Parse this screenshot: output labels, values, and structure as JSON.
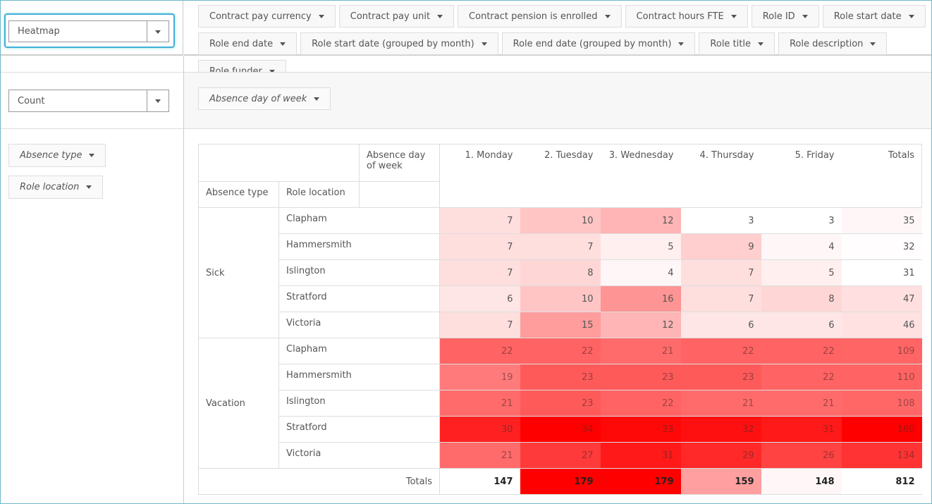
{
  "renderer": "Heatmap",
  "aggregator": "Count",
  "unused_attributes": [
    "Contract pay currency",
    "Contract pay unit",
    "Contract pension is enrolled",
    "Contract hours FTE",
    "Role ID",
    "Role start date",
    "Role end date",
    "Role start date (grouped by month)",
    "Role end date (grouped by month)",
    "Role title",
    "Role description",
    "Role funder"
  ],
  "column_attributes": [
    "Absence day of week"
  ],
  "row_attributes": [
    "Absence type",
    "Role location"
  ],
  "table": {
    "corner_label": "Absence day of week",
    "row_headers": [
      "Absence type",
      "Role location"
    ],
    "columns": [
      "1. Monday",
      "2. Tuesday",
      "3. Wednesday",
      "4. Thursday",
      "5. Friday"
    ],
    "totals_column_label": "Totals",
    "groups": [
      {
        "name": "Sick",
        "rows": [
          {
            "label": "Clapham",
            "values": [
              7,
              10,
              12,
              3,
              3
            ],
            "total": 35
          },
          {
            "label": "Hammersmith",
            "values": [
              7,
              7,
              5,
              9,
              4
            ],
            "total": 32
          },
          {
            "label": "Islington",
            "values": [
              7,
              8,
              4,
              7,
              5
            ],
            "total": 31
          },
          {
            "label": "Stratford",
            "values": [
              6,
              10,
              16,
              7,
              8
            ],
            "total": 47
          },
          {
            "label": "Victoria",
            "values": [
              7,
              15,
              12,
              6,
              6
            ],
            "total": 46
          }
        ]
      },
      {
        "name": "Vacation",
        "rows": [
          {
            "label": "Clapham",
            "values": [
              22,
              22,
              21,
              22,
              22
            ],
            "total": 109
          },
          {
            "label": "Hammersmith",
            "values": [
              19,
              23,
              23,
              23,
              22
            ],
            "total": 110
          },
          {
            "label": "Islington",
            "values": [
              21,
              23,
              22,
              21,
              21
            ],
            "total": 108
          },
          {
            "label": "Stratford",
            "values": [
              30,
              34,
              33,
              32,
              31
            ],
            "total": 160
          },
          {
            "label": "Victoria",
            "values": [
              21,
              27,
              31,
              29,
              26
            ],
            "total": 134
          }
        ]
      }
    ],
    "totals_row_label": "Totals",
    "column_totals": [
      147,
      179,
      179,
      159,
      148
    ],
    "grand_total": 812
  }
}
